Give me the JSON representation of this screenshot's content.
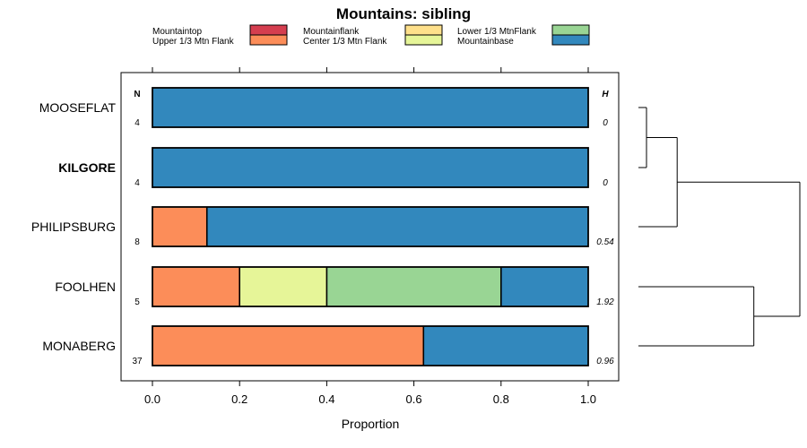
{
  "chart_data": {
    "type": "bar",
    "orientation": "horizontal",
    "stacked": true,
    "title": "Mountains: sibling",
    "xlabel": "Proportion",
    "ylabel": "",
    "xlim": [
      0,
      1
    ],
    "x_ticks": [
      "0.0",
      "0.2",
      "0.4",
      "0.6",
      "0.8",
      "1.0"
    ],
    "column_headers": {
      "n": "N",
      "h": "H"
    },
    "legend": [
      {
        "name": "Mountaintop",
        "color": "#d53e4f"
      },
      {
        "name": "Upper 1/3 Mtn Flank",
        "color": "#fc8d59"
      },
      {
        "name": "Mountainflank",
        "color": "#fee08b"
      },
      {
        "name": "Center 1/3 Mtn Flank",
        "color": "#e6f598"
      },
      {
        "name": "Lower 1/3 MtnFlank",
        "color": "#99d594"
      },
      {
        "name": "Mountainbase",
        "color": "#3288bd"
      }
    ],
    "categories": [
      "MOOSEFLAT",
      "KILGORE",
      "PHILIPSBURG",
      "FOOLHEN",
      "MONABERG"
    ],
    "highlighted_category": "KILGORE",
    "n": [
      "4",
      "4",
      "8",
      "5",
      "37"
    ],
    "h": [
      "0",
      "0",
      "0.54",
      "1.92",
      "0.96"
    ],
    "series": [
      {
        "name": "Mountaintop",
        "values": [
          0,
          0,
          0,
          0,
          0
        ]
      },
      {
        "name": "Upper 1/3 Mtn Flank",
        "values": [
          0,
          0,
          0.125,
          0.2,
          0.622
        ]
      },
      {
        "name": "Mountainflank",
        "values": [
          0,
          0,
          0,
          0,
          0
        ]
      },
      {
        "name": "Center 1/3 Mtn Flank",
        "values": [
          0,
          0,
          0,
          0.2,
          0
        ]
      },
      {
        "name": "Lower 1/3 MtnFlank",
        "values": [
          0,
          0,
          0,
          0.4,
          0
        ]
      },
      {
        "name": "Mountainbase",
        "values": [
          1,
          1,
          0.875,
          0.2,
          0.378
        ]
      }
    ],
    "dendrogram": {
      "merges": [
        {
          "left": "MOOSEFLAT",
          "right": "KILGORE",
          "height": 0
        },
        {
          "left": "MOOSEFLAT+KILGORE",
          "right": "PHILIPSBURG",
          "height": 0.2
        },
        {
          "left": "FOOLHEN",
          "right": "MONABERG",
          "height": 0.7
        },
        {
          "left": "MOOSEFLAT+KILGORE+PHILIPSBURG",
          "right": "FOOLHEN+MONABERG",
          "height": 1
        }
      ]
    }
  }
}
